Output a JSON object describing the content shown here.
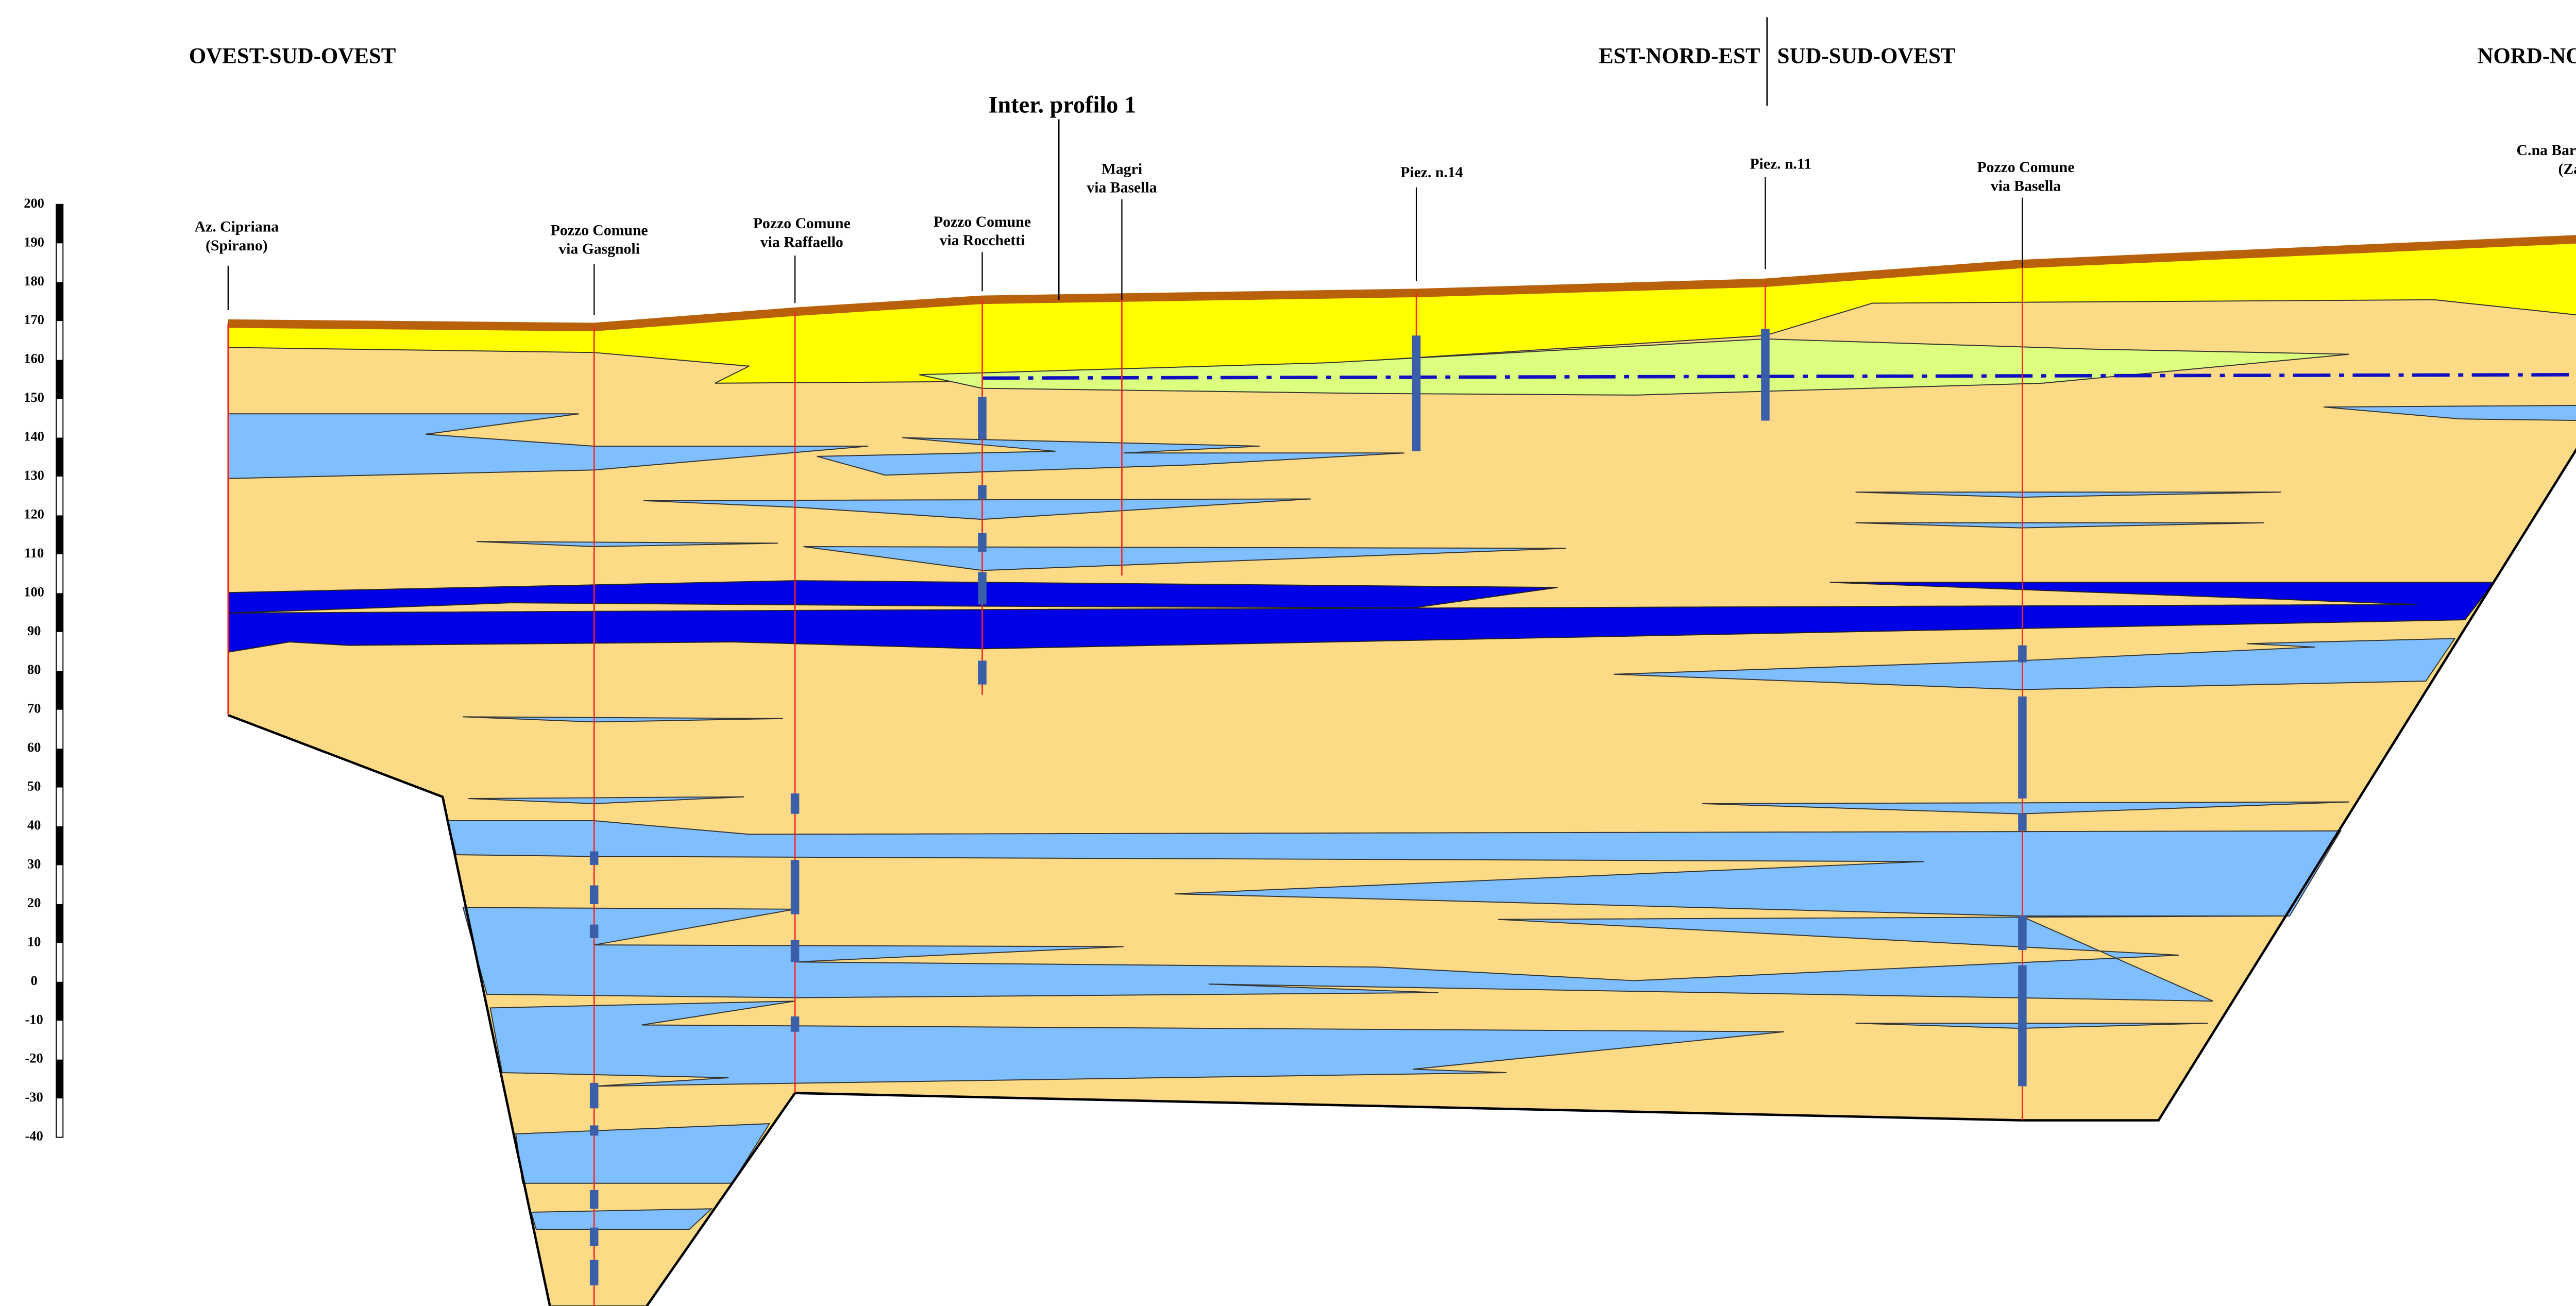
{
  "directions": [
    "OVEST-SUD-OVEST",
    "EST-NORD-EST",
    "SUD-SUD-OVEST",
    "NORD-NORD-EST"
  ],
  "section_label": "Inter. profilo 1",
  "wells": [
    {
      "lines": [
        "Az. Cipriana",
        "(Spirano)"
      ]
    },
    {
      "lines": [
        "Pozzo Comune",
        "via Gasgnoli"
      ]
    },
    {
      "lines": [
        "Pozzo Comune",
        "via Raffaello"
      ]
    },
    {
      "lines": [
        "Pozzo Comune",
        "via Rocchetti"
      ]
    },
    {
      "lines": [
        "Magri",
        "via Basella"
      ]
    },
    {
      "lines": [
        "Piez. n.14"
      ]
    },
    {
      "lines": [
        "Piez. n.11"
      ]
    },
    {
      "lines": [
        "Pozzo Comune",
        "via Basella"
      ]
    },
    {
      "lines": [
        "C.na Barico - Fiocchi",
        "(Zanica)"
      ]
    }
  ],
  "scale": {
    "ticks": [
      200,
      190,
      180,
      170,
      160,
      150,
      140,
      130,
      120,
      110,
      100,
      90,
      80,
      70,
      60,
      50,
      40,
      30,
      20,
      10,
      0,
      -10,
      -20,
      -30,
      -40
    ]
  }
}
